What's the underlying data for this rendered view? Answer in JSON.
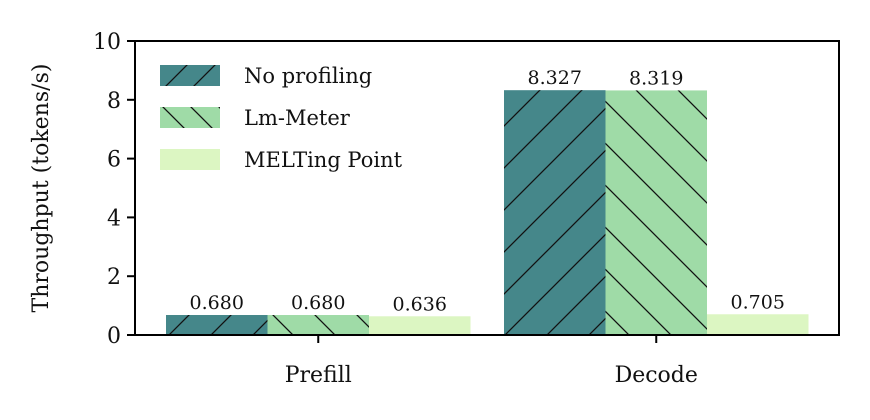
{
  "chart_data": {
    "type": "bar",
    "categories": [
      "Prefill",
      "Decode"
    ],
    "series": [
      {
        "name": "No profiling",
        "values": [
          0.68,
          8.327
        ],
        "labels": [
          "0.680",
          "8.327"
        ],
        "color": "#45878a",
        "hatch": "forward"
      },
      {
        "name": "Lm-Meter",
        "values": [
          0.68,
          8.319
        ],
        "labels": [
          "0.680",
          "8.319"
        ],
        "color": "#9fdba7",
        "hatch": "backward"
      },
      {
        "name": "MELTing Point",
        "values": [
          0.636,
          0.705
        ],
        "labels": [
          "0.636",
          "0.705"
        ],
        "color": "#dcf6c2",
        "hatch": "none"
      }
    ],
    "xlabel": "",
    "ylabel": "Throughput (tokens/s)",
    "ylim": [
      0,
      10
    ],
    "yticks": [
      {
        "value": 0,
        "label": "0"
      },
      {
        "value": 2,
        "label": "2"
      },
      {
        "value": 4,
        "label": "4"
      },
      {
        "value": 6,
        "label": "6"
      },
      {
        "value": 8,
        "label": "8"
      },
      {
        "value": 10,
        "label": "10"
      }
    ],
    "legend_position": "top-left",
    "grid": false
  }
}
